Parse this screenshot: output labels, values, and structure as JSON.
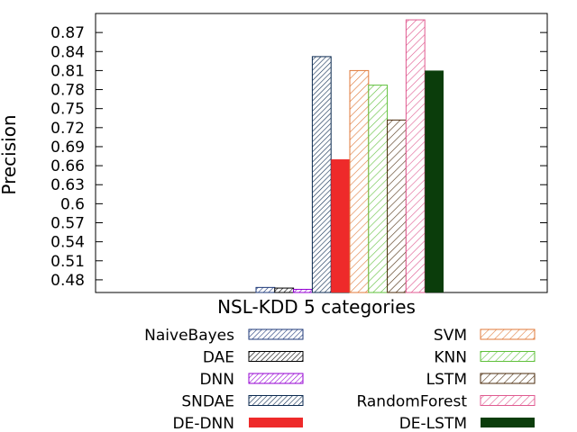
{
  "chart_data": {
    "type": "bar",
    "title": "",
    "xlabel": "NSL-KDD 5 categories",
    "ylabel": "Precision",
    "categories": [
      "NSL-KDD 5 categories"
    ],
    "ylim": [
      0.46,
      0.9
    ],
    "yticks": [
      "0.48",
      "0.51",
      "0.54",
      "0.57",
      "0.6",
      "0.63",
      "0.66",
      "0.69",
      "0.72",
      "0.75",
      "0.78",
      "0.81",
      "0.84",
      "0.87"
    ],
    "grid": false,
    "legend_position": "bottom",
    "series": [
      {
        "name": "NaiveBayes",
        "value": 0.468,
        "color": "#1f3a7a",
        "pattern": "hatch-dense"
      },
      {
        "name": "DAE",
        "value": 0.467,
        "color": "#000000",
        "pattern": "hatch-dense"
      },
      {
        "name": "DNN",
        "value": 0.465,
        "color": "#9400d3",
        "pattern": "hatch-dense"
      },
      {
        "name": "SNDAE",
        "value": 0.832,
        "color": "#0b2a50",
        "pattern": "hatch-dense"
      },
      {
        "name": "DE-DNN",
        "value": 0.67,
        "color": "#ee2a2a",
        "pattern": "solid"
      },
      {
        "name": "SVM",
        "value": 0.81,
        "color": "#e07a3a",
        "pattern": "hatch-sparse"
      },
      {
        "name": "KNN",
        "value": 0.787,
        "color": "#5fc03a",
        "pattern": "hatch-sparse"
      },
      {
        "name": "LSTM",
        "value": 0.732,
        "color": "#4a2a0a",
        "pattern": "hatch-sparse"
      },
      {
        "name": "RandomForest",
        "value": 0.89,
        "color": "#e05a90",
        "pattern": "hatch-sparse"
      },
      {
        "name": "DE-LSTM",
        "value": 0.81,
        "color": "#0b3d0b",
        "pattern": "solid"
      }
    ]
  }
}
